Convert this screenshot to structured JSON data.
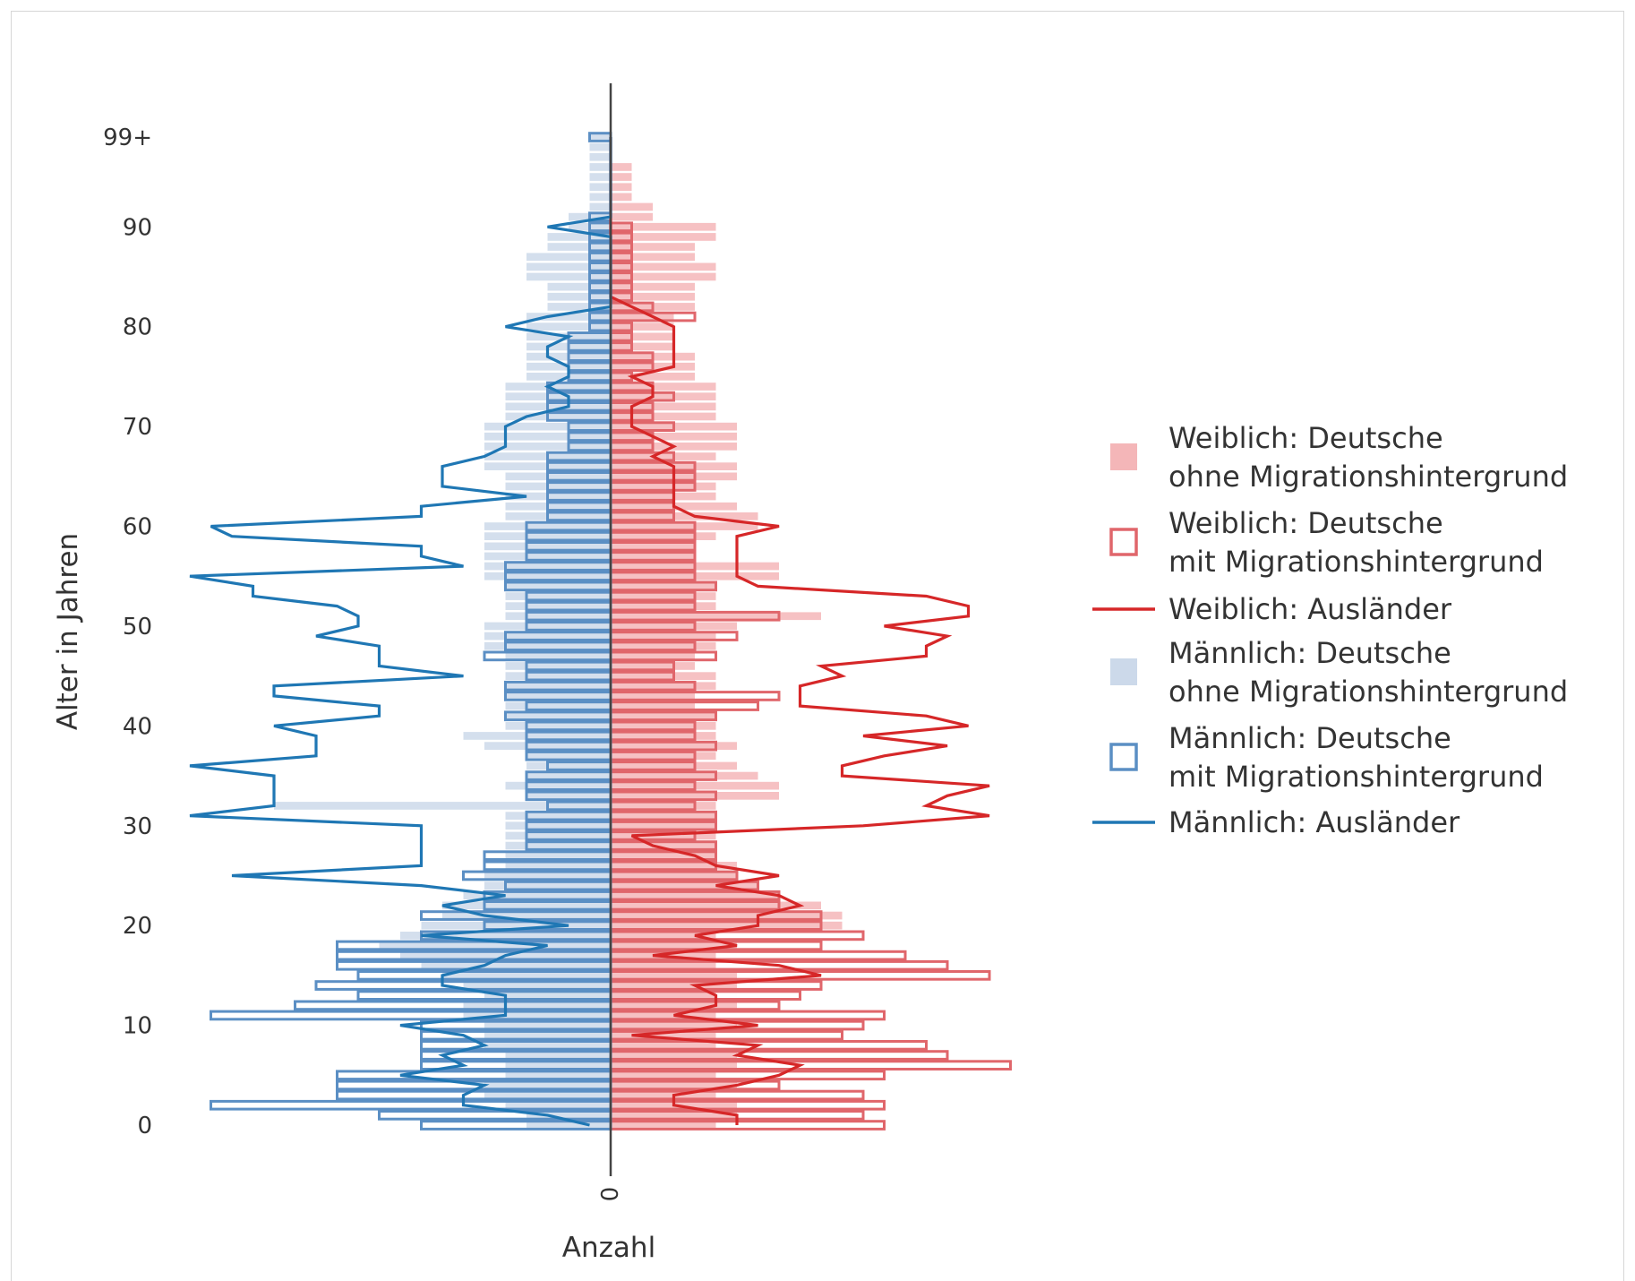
{
  "chart_data": {
    "type": "bar",
    "orientation": "horizontal",
    "subtype": "population-pyramid",
    "ylabel": "Alter in Jahren",
    "xlabel": "Anzahl",
    "x_tick_labels": [
      "0"
    ],
    "y_ticks": [
      {
        "age": 0,
        "label": "0"
      },
      {
        "age": 10,
        "label": "10"
      },
      {
        "age": 20,
        "label": "20"
      },
      {
        "age": 30,
        "label": "30"
      },
      {
        "age": 40,
        "label": "40"
      },
      {
        "age": 50,
        "label": "50"
      },
      {
        "age": 60,
        "label": "60"
      },
      {
        "age": 70,
        "label": "70"
      },
      {
        "age": 80,
        "label": "80"
      },
      {
        "age": 90,
        "label": "90"
      },
      {
        "age": 99,
        "label": "99+"
      }
    ],
    "ylim": [
      -5,
      105
    ],
    "xlim": [
      -21,
      21
    ],
    "grid": false,
    "legend_position": "right",
    "series": [
      {
        "name": "Weiblich: Deutsche\nohne Migrationshintergrund",
        "kind": "bar-filled",
        "side": "right",
        "color": "#f4b6b8",
        "values": [
          5,
          6,
          6,
          5,
          6,
          5,
          6,
          6,
          5,
          5,
          6,
          5,
          6,
          5,
          6,
          6,
          5,
          5,
          6,
          5,
          11,
          11,
          10,
          8,
          7,
          6,
          6,
          5,
          5,
          5,
          5,
          5,
          5,
          8,
          8,
          7,
          6,
          5,
          6,
          5,
          5,
          5,
          4,
          4,
          5,
          5,
          4,
          4,
          5,
          5,
          6,
          10,
          5,
          5,
          5,
          8,
          8,
          4,
          4,
          5,
          7,
          7,
          6,
          5,
          5,
          6,
          6,
          5,
          6,
          6,
          6,
          5,
          5,
          5,
          5,
          4,
          4,
          4,
          3,
          3,
          3,
          3,
          4,
          4,
          4,
          5,
          5,
          4,
          4,
          5,
          5,
          2,
          2,
          1,
          1,
          1,
          1,
          0,
          0,
          0
        ]
      },
      {
        "name": "Weiblich: Deutsche\nmit Migrationshintergrund",
        "kind": "bar-outline",
        "side": "right",
        "color": "#e0666b",
        "values": [
          13,
          12,
          13,
          12,
          8,
          13,
          19,
          16,
          15,
          11,
          12,
          13,
          8,
          9,
          10,
          18,
          16,
          14,
          10,
          12,
          10,
          10,
          8,
          8,
          7,
          6,
          5,
          5,
          5,
          4,
          5,
          5,
          4,
          5,
          4,
          5,
          4,
          4,
          5,
          4,
          4,
          5,
          7,
          8,
          4,
          3,
          3,
          5,
          4,
          6,
          4,
          8,
          4,
          4,
          5,
          4,
          4,
          4,
          4,
          4,
          4,
          3,
          3,
          3,
          4,
          4,
          4,
          3,
          2,
          2,
          3,
          2,
          2,
          3,
          2,
          1,
          2,
          2,
          1,
          1,
          1,
          4,
          2,
          1,
          1,
          1,
          1,
          1,
          1,
          1,
          1,
          0,
          0,
          0,
          0,
          0,
          0,
          0,
          0,
          0
        ]
      },
      {
        "name": "Weiblich: Ausländer",
        "kind": "line",
        "side": "right",
        "color": "#d62728",
        "values": [
          6,
          6,
          3,
          3,
          6,
          8,
          9,
          6,
          7,
          1,
          7,
          3,
          5,
          5,
          4,
          10,
          8,
          2,
          6,
          4,
          7,
          7,
          9,
          8,
          5,
          8,
          5,
          4,
          2,
          1,
          12,
          18,
          15,
          16,
          18,
          11,
          11,
          13,
          16,
          12,
          17,
          15,
          9,
          9,
          9,
          11,
          10,
          15,
          15,
          16,
          13,
          17,
          17,
          15,
          7,
          6,
          6,
          6,
          6,
          6,
          8,
          4,
          3,
          3,
          3,
          3,
          3,
          2,
          3,
          2,
          1,
          1,
          1,
          2,
          2,
          1,
          3,
          3,
          3,
          3,
          3,
          2,
          1,
          0,
          0,
          0,
          0,
          0,
          0,
          0,
          0,
          0,
          0,
          0,
          0,
          0,
          0,
          0,
          0,
          0
        ]
      },
      {
        "name": "Männlich: Deutsche\nohne Migrationshintergrund",
        "kind": "bar-filled",
        "side": "left",
        "color": "#ccd9ea",
        "values": [
          4,
          4,
          5,
          6,
          6,
          5,
          5,
          5,
          6,
          6,
          6,
          7,
          7,
          6,
          7,
          8,
          9,
          10,
          11,
          10,
          9,
          8,
          8,
          7,
          6,
          6,
          5,
          5,
          5,
          5,
          5,
          5,
          16,
          4,
          5,
          4,
          4,
          4,
          6,
          7,
          5,
          5,
          5,
          5,
          5,
          5,
          5,
          5,
          6,
          6,
          6,
          5,
          5,
          5,
          5,
          6,
          6,
          6,
          6,
          6,
          6,
          5,
          5,
          5,
          5,
          5,
          6,
          6,
          6,
          6,
          6,
          5,
          5,
          5,
          5,
          4,
          4,
          4,
          4,
          4,
          4,
          4,
          3,
          3,
          3,
          4,
          4,
          4,
          3,
          3,
          2,
          2,
          1,
          1,
          1,
          1,
          1,
          1,
          1,
          1
        ]
      },
      {
        "name": "Männlich: Deutsche\nmit Migrationshintergrund",
        "kind": "bar-outline",
        "side": "left",
        "color": "#5b8fc4",
        "values": [
          9,
          11,
          19,
          13,
          13,
          13,
          9,
          9,
          9,
          9,
          9,
          19,
          15,
          12,
          14,
          12,
          13,
          13,
          13,
          9,
          6,
          9,
          6,
          6,
          5,
          7,
          6,
          6,
          4,
          4,
          4,
          4,
          3,
          4,
          4,
          4,
          3,
          4,
          4,
          4,
          4,
          5,
          4,
          5,
          5,
          4,
          4,
          6,
          5,
          5,
          4,
          4,
          4,
          4,
          5,
          5,
          5,
          4,
          4,
          4,
          4,
          3,
          3,
          3,
          3,
          3,
          3,
          3,
          2,
          2,
          2,
          3,
          3,
          3,
          3,
          2,
          2,
          2,
          2,
          2,
          1,
          1,
          1,
          1,
          1,
          1,
          1,
          1,
          1,
          1,
          1,
          1,
          0,
          0,
          0,
          0,
          0,
          0,
          0,
          1
        ]
      },
      {
        "name": "Männlich: Ausländer",
        "kind": "line",
        "side": "right",
        "color": "#1f77b4",
        "values": [
          1,
          3,
          7,
          7,
          6,
          10,
          7,
          8,
          6,
          7,
          10,
          5,
          5,
          5,
          8,
          8,
          6,
          5,
          3,
          9,
          2,
          6,
          8,
          5,
          9,
          18,
          9,
          9,
          9,
          9,
          9,
          20,
          16,
          16,
          16,
          16,
          20,
          14,
          14,
          14,
          16,
          11,
          11,
          16,
          16,
          7,
          11,
          11,
          11,
          14,
          12,
          12,
          13,
          17,
          17,
          20,
          7,
          9,
          9,
          18,
          19,
          9,
          9,
          4,
          8,
          8,
          8,
          6,
          5,
          5,
          5,
          4,
          2,
          2,
          3,
          2,
          2,
          3,
          3,
          2,
          5,
          3,
          0,
          0,
          0,
          0,
          0,
          0,
          0,
          0,
          3,
          0,
          0,
          0,
          0,
          0,
          0,
          0,
          0,
          0
        ]
      }
    ]
  }
}
